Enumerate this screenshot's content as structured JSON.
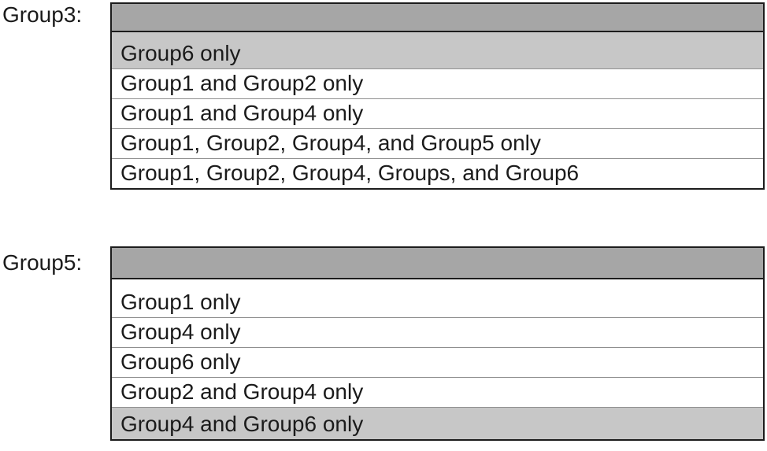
{
  "page": {
    "background": "#ffffff"
  },
  "colors": {
    "header_fill": "#a6a6a6",
    "selected_fill": "#c7c7c7",
    "row_fill": "#ffffff",
    "outer_border": "#1c1c1c",
    "separator": "#8f8f8f",
    "text": "#1b1b1b"
  },
  "dropdowns": [
    {
      "label": "Group3:",
      "header_value": "",
      "options": [
        {
          "text": "Group6 only",
          "selected": true
        },
        {
          "text": "Group1 and Group2 only",
          "selected": false
        },
        {
          "text": "Group1 and Group4 only",
          "selected": false
        },
        {
          "text": "Group1, Group2, Group4, and Group5 only",
          "selected": false
        },
        {
          "text": "Group1, Group2, Group4, Groups, and Group6",
          "selected": false
        }
      ]
    },
    {
      "label": "Group5:",
      "header_value": "",
      "options": [
        {
          "text": "Group1 only",
          "selected": false
        },
        {
          "text": "Group4 only",
          "selected": false
        },
        {
          "text": "Group6 only",
          "selected": false
        },
        {
          "text": "Group2 and Group4 only",
          "selected": false
        },
        {
          "text": "Group4 and Group6 only",
          "selected": true
        }
      ]
    }
  ]
}
